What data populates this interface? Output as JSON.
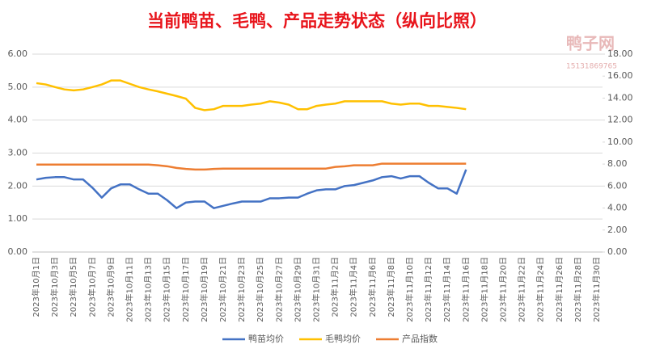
{
  "chart_data": {
    "type": "line",
    "title": "当前鸭苗、毛鸭、产品走势状态（纵向比照）",
    "watermark": [
      "鸭子网",
      "15131869765"
    ],
    "categories": [
      "2023年10月1日",
      null,
      "2023年10月3日",
      null,
      "2023年10月5日",
      null,
      "2023年10月7日",
      null,
      "2023年10月9日",
      null,
      "2023年10月11日",
      null,
      "2023年10月13日",
      null,
      "2023年10月15日",
      null,
      "2023年10月17日",
      null,
      "2023年10月19日",
      null,
      "2023年10月21日",
      null,
      "2023年10月23日",
      null,
      "2023年10月25日",
      null,
      "2023年10月27日",
      null,
      "2023年10月29日",
      null,
      "2023年10月31日",
      null,
      "2023年11月2日",
      null,
      "2023年11月4日",
      null,
      "2023年11月6日",
      null,
      "2023年11月8日",
      null,
      "2023年11月10日",
      null,
      "2023年11月12日",
      null,
      "2023年11月14日",
      null,
      "2023年11月16日",
      null,
      "2023年11月18日",
      null,
      "2023年11月20日",
      null,
      "2023年11月22日",
      null,
      "2023年11月24日",
      null,
      "2023年11月26日",
      null,
      "2023年11月28日",
      null,
      "2023年11月30日"
    ],
    "series": [
      {
        "name": "鸭苗均价",
        "color": "#4472c4",
        "values": [
          2.2,
          2.25,
          2.27,
          2.27,
          2.2,
          2.2,
          1.95,
          1.65,
          1.93,
          2.05,
          2.05,
          1.9,
          1.77,
          1.77,
          1.57,
          1.33,
          1.5,
          1.53,
          1.53,
          1.33,
          1.4,
          1.47,
          1.53,
          1.53,
          1.53,
          1.63,
          1.63,
          1.65,
          1.65,
          1.77,
          1.87,
          1.9,
          1.9,
          2.0,
          2.03,
          2.1,
          2.17,
          2.27,
          2.3,
          2.23,
          2.3,
          2.3,
          2.1,
          1.93,
          1.93,
          1.77,
          2.5,
          null,
          null,
          null,
          null,
          null,
          null,
          null,
          null,
          null,
          null,
          null,
          null,
          null,
          null
        ]
      },
      {
        "name": "毛鸭均价",
        "color": "#ffc000",
        "values": [
          5.12,
          5.08,
          5.0,
          4.93,
          4.9,
          4.93,
          5.0,
          5.08,
          5.2,
          5.2,
          5.1,
          5.0,
          4.93,
          4.87,
          4.8,
          4.73,
          4.65,
          4.37,
          4.3,
          4.33,
          4.43,
          4.43,
          4.43,
          4.47,
          4.5,
          4.57,
          4.53,
          4.47,
          4.33,
          4.33,
          4.43,
          4.47,
          4.5,
          4.57,
          4.57,
          4.57,
          4.57,
          4.57,
          4.5,
          4.47,
          4.5,
          4.5,
          4.43,
          4.43,
          4.4,
          4.37,
          4.33,
          null,
          null,
          null,
          null,
          null,
          null,
          null,
          null,
          null,
          null,
          null,
          null,
          null,
          null
        ]
      },
      {
        "name": "产品指数",
        "color": "#ed7d31",
        "values": [
          2.65,
          2.65,
          2.65,
          2.65,
          2.65,
          2.65,
          2.65,
          2.65,
          2.65,
          2.65,
          2.65,
          2.65,
          2.65,
          2.63,
          2.6,
          2.55,
          2.52,
          2.5,
          2.5,
          2.52,
          2.53,
          2.53,
          2.53,
          2.53,
          2.53,
          2.53,
          2.53,
          2.53,
          2.53,
          2.53,
          2.53,
          2.53,
          2.58,
          2.6,
          2.63,
          2.63,
          2.63,
          2.68,
          2.68,
          2.68,
          2.68,
          2.68,
          2.68,
          2.68,
          2.68,
          2.68,
          2.68,
          null,
          null,
          null,
          null,
          null,
          null,
          null,
          null,
          null,
          null,
          null,
          null,
          null,
          null
        ]
      }
    ],
    "ylim": [
      0,
      6
    ],
    "yticks": [
      {
        "value": 0,
        "label": "0.00"
      },
      {
        "value": 1,
        "label": "1.00"
      },
      {
        "value": 2,
        "label": "2.00"
      },
      {
        "value": 3,
        "label": "3.00"
      },
      {
        "value": 4,
        "label": "4.00"
      },
      {
        "value": 5,
        "label": "5.00"
      },
      {
        "value": 6,
        "label": "6.00"
      }
    ],
    "y2lim": [
      0,
      18
    ],
    "y2ticks": [
      {
        "value": 0,
        "label": "0.00"
      },
      {
        "value": 2,
        "label": "2.00"
      },
      {
        "value": 4,
        "label": "4.00"
      },
      {
        "value": 6,
        "label": "6.00"
      },
      {
        "value": 8,
        "label": "8.00"
      },
      {
        "value": 10,
        "label": "10.00"
      },
      {
        "value": 12,
        "label": "12.00"
      },
      {
        "value": 14,
        "label": "14.00"
      },
      {
        "value": 16,
        "label": "16.00"
      },
      {
        "value": 18,
        "label": "18.00"
      }
    ],
    "grid": true,
    "legend": "bottom"
  }
}
